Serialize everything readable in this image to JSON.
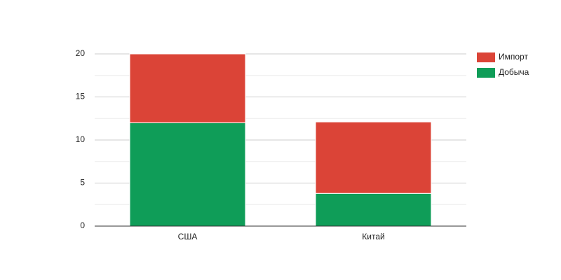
{
  "chart_data": {
    "type": "stacked_bar",
    "categories": [
      "США",
      "Китай"
    ],
    "series": [
      {
        "name": "Добыча",
        "color": "#0f9d58",
        "values": [
          12,
          3.8
        ]
      },
      {
        "name": "Импорт",
        "color": "#db4437",
        "values": [
          8,
          8.3
        ]
      }
    ],
    "ylim": [
      0,
      20
    ],
    "yticks": [
      0,
      5,
      10,
      15,
      20
    ],
    "minor_yticks": [
      2.5,
      7.5,
      12.5,
      17.5
    ],
    "grid": true,
    "legend": "right"
  }
}
